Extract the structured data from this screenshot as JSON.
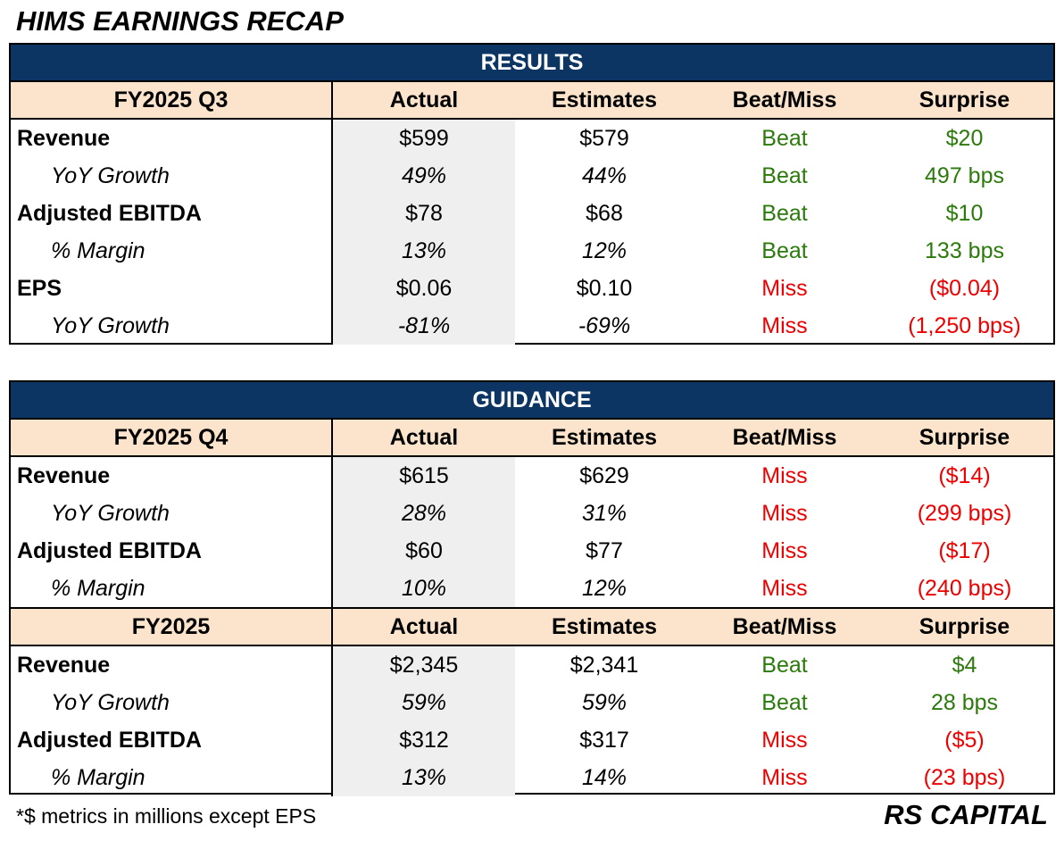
{
  "title": "HIMS EARNINGS RECAP",
  "results": {
    "section_title": "RESULTS",
    "period": "FY2025 Q3",
    "columns": {
      "actual": "Actual",
      "estimates": "Estimates",
      "beat_miss": "Beat/Miss",
      "surprise": "Surprise"
    },
    "rows": [
      {
        "metric": "Revenue",
        "actual": "$599",
        "estimate": "$579",
        "result": "Beat",
        "surprise": "$20"
      },
      {
        "metric": "YoY Growth",
        "actual": "49%",
        "estimate": "44%",
        "result": "Beat",
        "surprise": "497 bps"
      },
      {
        "metric": "Adjusted EBITDA",
        "actual": "$78",
        "estimate": "$68",
        "result": "Beat",
        "surprise": "$10"
      },
      {
        "metric": "% Margin",
        "actual": "13%",
        "estimate": "12%",
        "result": "Beat",
        "surprise": "133 bps"
      },
      {
        "metric": "EPS",
        "actual": "$0.06",
        "estimate": "$0.10",
        "result": "Miss",
        "surprise": "($0.04)"
      },
      {
        "metric": "YoY Growth",
        "actual": "-81%",
        "estimate": "-69%",
        "result": "Miss",
        "surprise": "(1,250 bps)"
      }
    ]
  },
  "guidance": {
    "section_title": "GUIDANCE",
    "q4": {
      "period": "FY2025 Q4",
      "columns": {
        "actual": "Actual",
        "estimates": "Estimates",
        "beat_miss": "Beat/Miss",
        "surprise": "Surprise"
      },
      "rows": [
        {
          "metric": "Revenue",
          "actual": "$615",
          "estimate": "$629",
          "result": "Miss",
          "surprise": "($14)"
        },
        {
          "metric": "YoY Growth",
          "actual": "28%",
          "estimate": "31%",
          "result": "Miss",
          "surprise": "(299 bps)"
        },
        {
          "metric": "Adjusted EBITDA",
          "actual": "$60",
          "estimate": "$77",
          "result": "Miss",
          "surprise": "($17)"
        },
        {
          "metric": "% Margin",
          "actual": "10%",
          "estimate": "12%",
          "result": "Miss",
          "surprise": "(240 bps)"
        }
      ]
    },
    "fy": {
      "period": "FY2025",
      "columns": {
        "actual": "Actual",
        "estimates": "Estimates",
        "beat_miss": "Beat/Miss",
        "surprise": "Surprise"
      },
      "rows": [
        {
          "metric": "Revenue",
          "actual": "$2,345",
          "estimate": "$2,341",
          "result": "Beat",
          "surprise": "$4"
        },
        {
          "metric": "YoY Growth",
          "actual": "59%",
          "estimate": "59%",
          "result": "Beat",
          "surprise": "28 bps"
        },
        {
          "metric": "Adjusted EBITDA",
          "actual": "$312",
          "estimate": "$317",
          "result": "Miss",
          "surprise": "($5)"
        },
        {
          "metric": "% Margin",
          "actual": "13%",
          "estimate": "14%",
          "result": "Miss",
          "surprise": "(23 bps)"
        }
      ]
    }
  },
  "colors": {
    "header_navy": "#0d3563",
    "subheader_peach": "#fce4cc",
    "actual_gray": "#efefef",
    "beat_green": "#2b7a0b",
    "miss_red": "#ee0000"
  },
  "footnote": "*$ metrics in millions except EPS",
  "brand": "RS CAPITAL"
}
